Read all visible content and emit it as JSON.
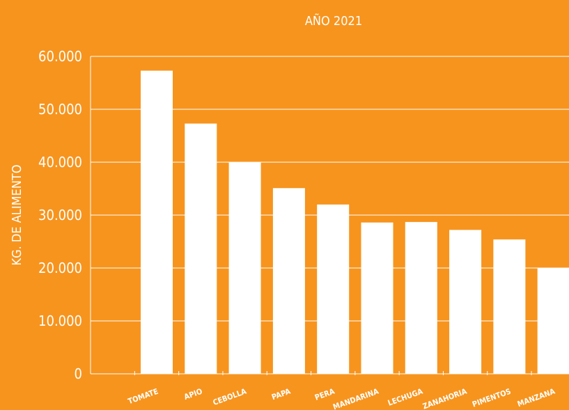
{
  "chart_data": {
    "type": "bar",
    "title": "AÑO 2021",
    "xlabel": "",
    "ylabel": "KG. DE ALIMENTO",
    "categories": [
      "TOMATE",
      "APIO",
      "CEBOLLA",
      "PAPA",
      "PERA",
      "MANDARINA",
      "LECHUGA",
      "ZANAHORIA",
      "PIMENTOS",
      "MANZANA"
    ],
    "values": [
      57300,
      47300,
      40000,
      35100,
      32000,
      28600,
      28700,
      27200,
      25400,
      20000
    ],
    "ylim": [
      0,
      60000
    ],
    "yticks": [
      0,
      10000,
      20000,
      30000,
      40000,
      50000,
      60000
    ],
    "ytick_labels": [
      "0",
      "10.000",
      "20.000",
      "30.000",
      "40.000",
      "50.000",
      "60.000"
    ],
    "grid": true,
    "colors": {
      "background": "#f7941d",
      "bar": "#ffffff",
      "grid": "#ffffff",
      "text": "#ffffff"
    }
  }
}
